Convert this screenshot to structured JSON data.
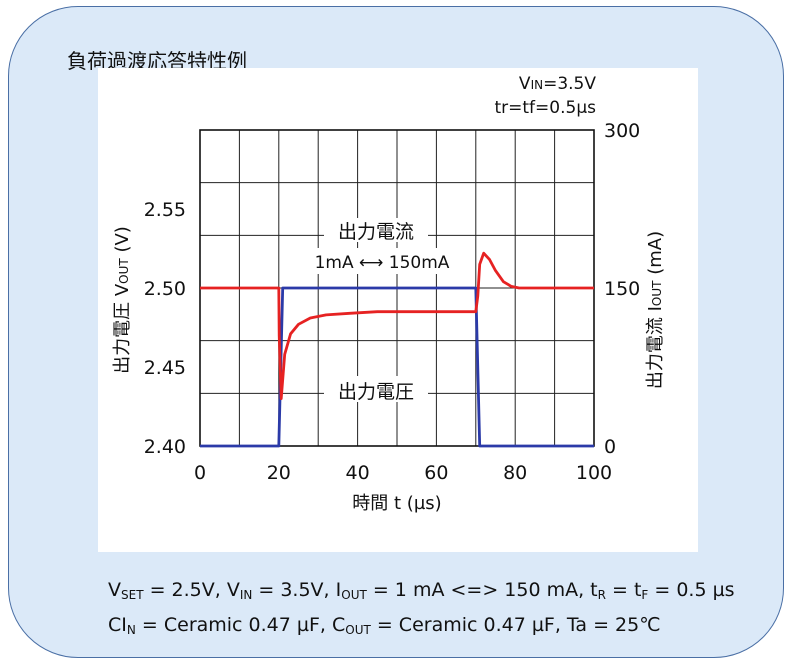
{
  "card": {
    "title": "負荷過渡応答特性例"
  },
  "chart_data": {
    "type": "line",
    "conditions": {
      "vin_label_main": "V",
      "vin_label_sub": "IN",
      "vin_value": "=3.5V",
      "tr_tf": "tr=tf=0.5µs"
    },
    "xlabel": "時間 t (µs)",
    "xlim": [
      0,
      100
    ],
    "x_ticks": [
      0,
      20,
      40,
      60,
      80,
      100
    ],
    "y_left": {
      "label_main": "出力電圧 V",
      "label_sub": "OUT",
      "label_unit": " (V)",
      "range": [
        2.4,
        2.6
      ],
      "ticks": [
        "2.40",
        "2.45",
        "2.50",
        "2.55"
      ],
      "tick_values": [
        2.4,
        2.45,
        2.5,
        2.55
      ]
    },
    "y_right": {
      "label_main": "出力電流 I",
      "label_sub": "OUT",
      "label_unit": " (mA)",
      "range": [
        0,
        300
      ],
      "ticks": [
        "0",
        "150",
        "300"
      ],
      "tick_values": [
        0,
        150,
        300
      ]
    },
    "grid": true,
    "series": [
      {
        "name": "出力電流",
        "axis": "right",
        "color": "#2b3aa8",
        "x": [
          0,
          20,
          21,
          70,
          71,
          100
        ],
        "y": [
          0,
          0,
          150,
          150,
          0,
          0
        ]
      },
      {
        "name": "出力電圧",
        "axis": "left",
        "color": "#e62222",
        "x": [
          0,
          20,
          20.1,
          20.6,
          21.5,
          23,
          25,
          28,
          32,
          38,
          45,
          55,
          70,
          70.5,
          71,
          72,
          73.5,
          75,
          77,
          79,
          81,
          85,
          100
        ],
        "y": [
          2.5,
          2.5,
          2.47,
          2.43,
          2.458,
          2.471,
          2.477,
          2.481,
          2.483,
          2.484,
          2.485,
          2.485,
          2.485,
          2.495,
          2.515,
          2.522,
          2.518,
          2.511,
          2.504,
          2.501,
          2.5,
          2.5,
          2.5
        ]
      }
    ],
    "annotations": {
      "current_label": "出力電流",
      "current_range": "1mA ⟷ 150mA",
      "voltage_label": "出力電圧"
    }
  },
  "caption": {
    "line1": {
      "v": "V",
      "set": "SET",
      "a": " = 2.5V, V",
      "in": "IN",
      "b": " = 3.5V, I",
      "out": "OUT",
      "c": " = 1 mA <=> 150 mA, t",
      "r": "R",
      "d": " = t",
      "f": "F",
      "e": " = 0.5 µs"
    },
    "line2": {
      "a": "CI",
      "n": "N",
      "b": " = Ceramic 0.47 µF, C",
      "out": "OUT",
      "c": " = Ceramic 0.47 µF, Ta = 25℃"
    }
  }
}
